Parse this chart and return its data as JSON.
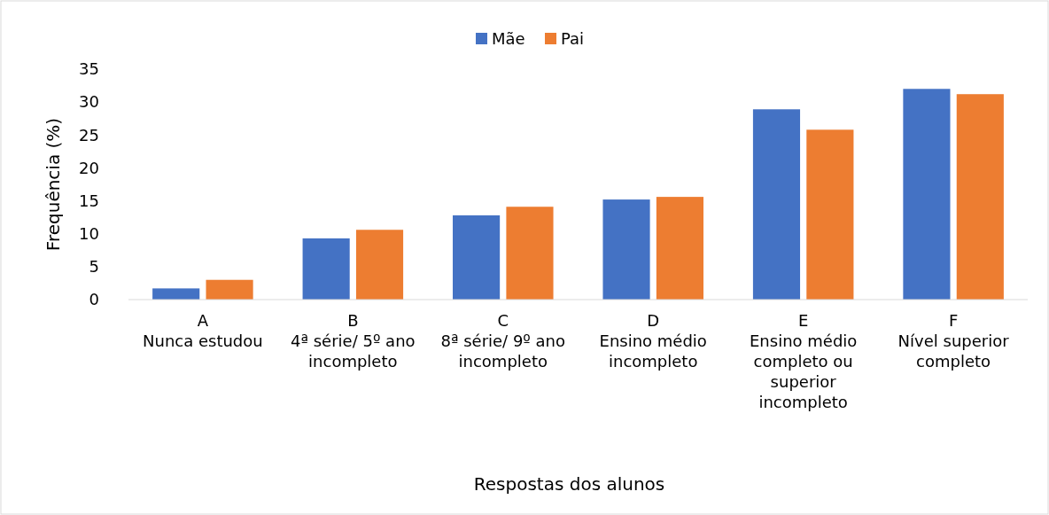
{
  "chart_data": {
    "type": "bar",
    "xlabel": "Respostas dos alunos",
    "ylabel": "Frequência (%)",
    "categories": [
      "A\nNunca estudou",
      "B\n4ª série/ 5º ano\nincompleto",
      "C\n8ª série/ 9º ano\nincompleto",
      "D\nEnsino médio\nincompleto",
      "E\nEnsino médio\ncompleto ou\nsuperior\nincompleto",
      "F\nNível superior\ncompleto"
    ],
    "series": [
      {
        "name": "Mãe",
        "color": "#4472c4",
        "values": [
          1.7,
          9.3,
          12.8,
          15.2,
          28.9,
          32.0
        ]
      },
      {
        "name": "Pai",
        "color": "#ed7d31",
        "values": [
          3.0,
          10.6,
          14.1,
          15.6,
          25.8,
          31.2
        ]
      }
    ],
    "ylim": [
      0,
      35
    ],
    "yticks": [
      0,
      5,
      10,
      15,
      20,
      25,
      30,
      35
    ],
    "grid": false,
    "legend": "top"
  }
}
